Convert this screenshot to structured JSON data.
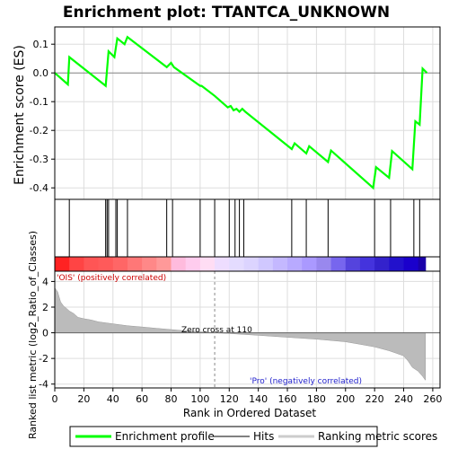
{
  "chart_data": {
    "type": "line",
    "title": "Enrichment plot: TTANTCA_UNKNOWN",
    "xlabel": "Rank in Ordered Dataset",
    "ylabel_top": "Enrichment score (ES)",
    "ylabel_bottom": "Ranked list metric (log2_Ratio_of_Classes)",
    "xlim": [
      0,
      265
    ],
    "ylim_es": [
      -0.44,
      0.16
    ],
    "ylim_metric": [
      -4.3,
      4.8
    ],
    "x_ticks": [
      0,
      20,
      40,
      60,
      80,
      100,
      120,
      140,
      160,
      180,
      200,
      220,
      240,
      260
    ],
    "es_y_ticks": [
      0.1,
      0.0,
      -0.1,
      -0.2,
      -0.3,
      -0.4
    ],
    "es_y_tick_labels": [
      "0.1",
      "0.0",
      "-0.1",
      "-0.2",
      "-0.3",
      "-0.4"
    ],
    "metric_y_ticks": [
      4,
      2,
      0,
      -2,
      -4
    ],
    "metric_y_tick_labels": [
      "4",
      "2",
      "0",
      "-2",
      "-4"
    ],
    "x_tick_labels": [
      "0",
      "20",
      "40",
      "60",
      "80",
      "100",
      "120",
      "140",
      "160",
      "180",
      "200",
      "220",
      "240",
      "260"
    ],
    "grid": true,
    "legend_placement": "bottom",
    "enrichment_profile": {
      "name": "Enrichment profile",
      "color": "#00ff00",
      "x": [
        0,
        9,
        10,
        35,
        37,
        41,
        43,
        48,
        50,
        77,
        80,
        82,
        100,
        101,
        110,
        119,
        121,
        123,
        125,
        127,
        129,
        131,
        163,
        165,
        173,
        175,
        188,
        190,
        219,
        221,
        230,
        232,
        246,
        248,
        251,
        253,
        256
      ],
      "y": [
        0.0,
        -0.04,
        0.055,
        -0.045,
        0.075,
        0.055,
        0.12,
        0.1,
        0.125,
        0.02,
        0.035,
        0.02,
        -0.045,
        -0.045,
        -0.08,
        -0.12,
        -0.115,
        -0.13,
        -0.125,
        -0.135,
        -0.125,
        -0.135,
        -0.265,
        -0.245,
        -0.28,
        -0.255,
        -0.31,
        -0.27,
        -0.4,
        -0.328,
        -0.365,
        -0.272,
        -0.335,
        -0.168,
        -0.18,
        0.015,
        0.0
      ]
    },
    "hits": {
      "name": "Hits",
      "x": [
        10,
        35,
        36,
        37,
        42,
        43,
        50,
        77,
        81,
        100,
        110,
        120,
        124,
        127,
        130,
        163,
        173,
        188,
        220,
        231,
        247,
        251
      ]
    },
    "ranking_metric": {
      "name": "Ranking metric scores",
      "zero_cross": 110,
      "x": [
        0,
        2,
        4,
        6,
        8,
        10,
        13,
        16,
        20,
        25,
        30,
        40,
        50,
        60,
        70,
        80,
        90,
        100,
        110,
        120,
        140,
        160,
        180,
        200,
        210,
        220,
        230,
        235,
        240,
        243,
        246,
        250,
        253,
        255
      ],
      "y": [
        3.5,
        3.2,
        2.4,
        2.1,
        1.9,
        1.7,
        1.5,
        1.2,
        1.1,
        1.0,
        0.85,
        0.7,
        0.55,
        0.45,
        0.35,
        0.25,
        0.15,
        0.08,
        0.0,
        -0.06,
        -0.2,
        -0.35,
        -0.5,
        -0.7,
        -0.9,
        -1.1,
        -1.4,
        -1.6,
        -1.8,
        -2.2,
        -2.7,
        -3.0,
        -3.4,
        -3.7
      ]
    },
    "heatmap_band": {
      "x": [
        0,
        10,
        20,
        30,
        40,
        50,
        60,
        70,
        80,
        90,
        100,
        110,
        120,
        130,
        140,
        150,
        160,
        170,
        180,
        190,
        200,
        210,
        220,
        230,
        240,
        250
      ],
      "colors": [
        "#ff2222",
        "#ff4444",
        "#ff5555",
        "#ff5a5a",
        "#ff6666",
        "#ff7777",
        "#ff8888",
        "#ff9999",
        "#ffbbdd",
        "#ffccee",
        "#ffddf4",
        "#eeddff",
        "#e4dcff",
        "#dcd4ff",
        "#d0c8ff",
        "#c4b8ff",
        "#b8aaff",
        "#aa99ff",
        "#9988ee",
        "#7766ee",
        "#5544dd",
        "#4433dd",
        "#3322cc",
        "#2211cc",
        "#1a00cc",
        "#1a00aa"
      ]
    },
    "annotations": {
      "positive": "'OIS' (positively correlated)",
      "negative": "'Pro' (negatively correlated)",
      "zero_cross": "Zero cross at 110"
    },
    "legend": [
      {
        "label": "Enrichment profile",
        "color": "#00ff00"
      },
      {
        "label": "Hits",
        "color": "#000000"
      },
      {
        "label": "Ranking metric scores",
        "color": "#cccccc"
      }
    ]
  }
}
